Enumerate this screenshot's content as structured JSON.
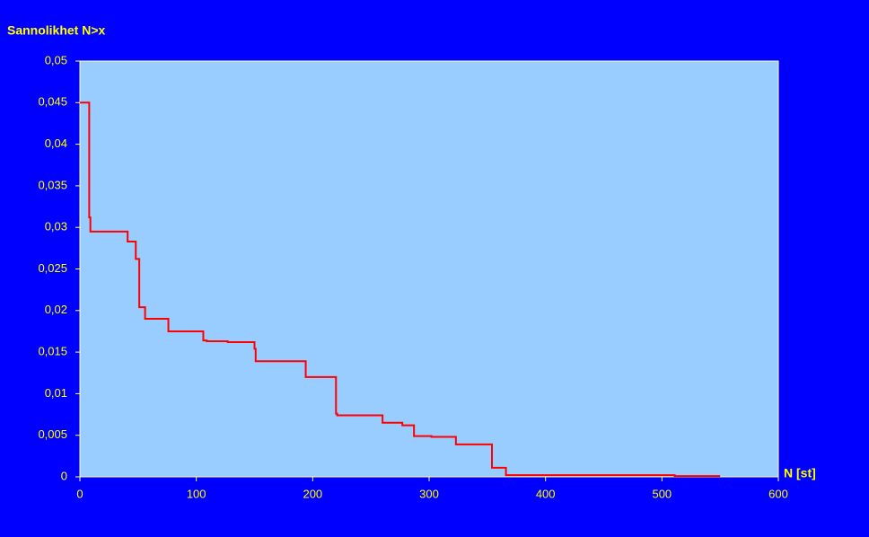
{
  "chart_data": {
    "type": "line",
    "title": "Sannolikhet N>x",
    "xlabel": "N [st]",
    "x": [
      0,
      8,
      8,
      9,
      9,
      41,
      41,
      48,
      48,
      51,
      51,
      56,
      56,
      76,
      76,
      106,
      106,
      109,
      109,
      127,
      127,
      150,
      150,
      151,
      151,
      194,
      194,
      220,
      220,
      221,
      221,
      260,
      260,
      277,
      277,
      287,
      287,
      302,
      302,
      323,
      323,
      354,
      354,
      366,
      366,
      511,
      511,
      550
    ],
    "series": [
      {
        "color": "#ff0000",
        "values": [
          0.045,
          0.045,
          0.0312,
          0.0312,
          0.0295,
          0.0295,
          0.0283,
          0.0283,
          0.0262,
          0.0262,
          0.0204,
          0.0204,
          0.019,
          0.019,
          0.0175,
          0.0175,
          0.0164,
          0.0164,
          0.0163,
          0.0163,
          0.0162,
          0.0162,
          0.0154,
          0.0154,
          0.0139,
          0.0139,
          0.012,
          0.012,
          0.0076,
          0.0076,
          0.0074,
          0.0074,
          0.0065,
          0.0065,
          0.0062,
          0.0062,
          0.0049,
          0.0049,
          0.0048,
          0.0048,
          0.0039,
          0.0039,
          0.0011,
          0.0011,
          0.0002,
          0.0002,
          0.0001,
          0.0001
        ]
      }
    ],
    "xlim": [
      0,
      600
    ],
    "xticks": [
      0,
      100,
      200,
      300,
      400,
      500,
      600
    ],
    "ylim": [
      0,
      0.05
    ],
    "yticks": [
      0,
      {
        "value": 0.005,
        "label": "0,005"
      },
      {
        "value": 0.01,
        "label": "0,01"
      },
      {
        "value": 0.015,
        "label": "0,015"
      },
      {
        "value": 0.02,
        "label": "0,02"
      },
      {
        "value": 0.025,
        "label": "0,025"
      },
      {
        "value": 0.03,
        "label": "0,03"
      },
      {
        "value": 0.035,
        "label": "0,035"
      },
      {
        "value": 0.04,
        "label": "0,04"
      },
      {
        "value": 0.045,
        "label": "0,045"
      },
      {
        "value": 0.05,
        "label": "0,05"
      }
    ],
    "grid": false
  }
}
